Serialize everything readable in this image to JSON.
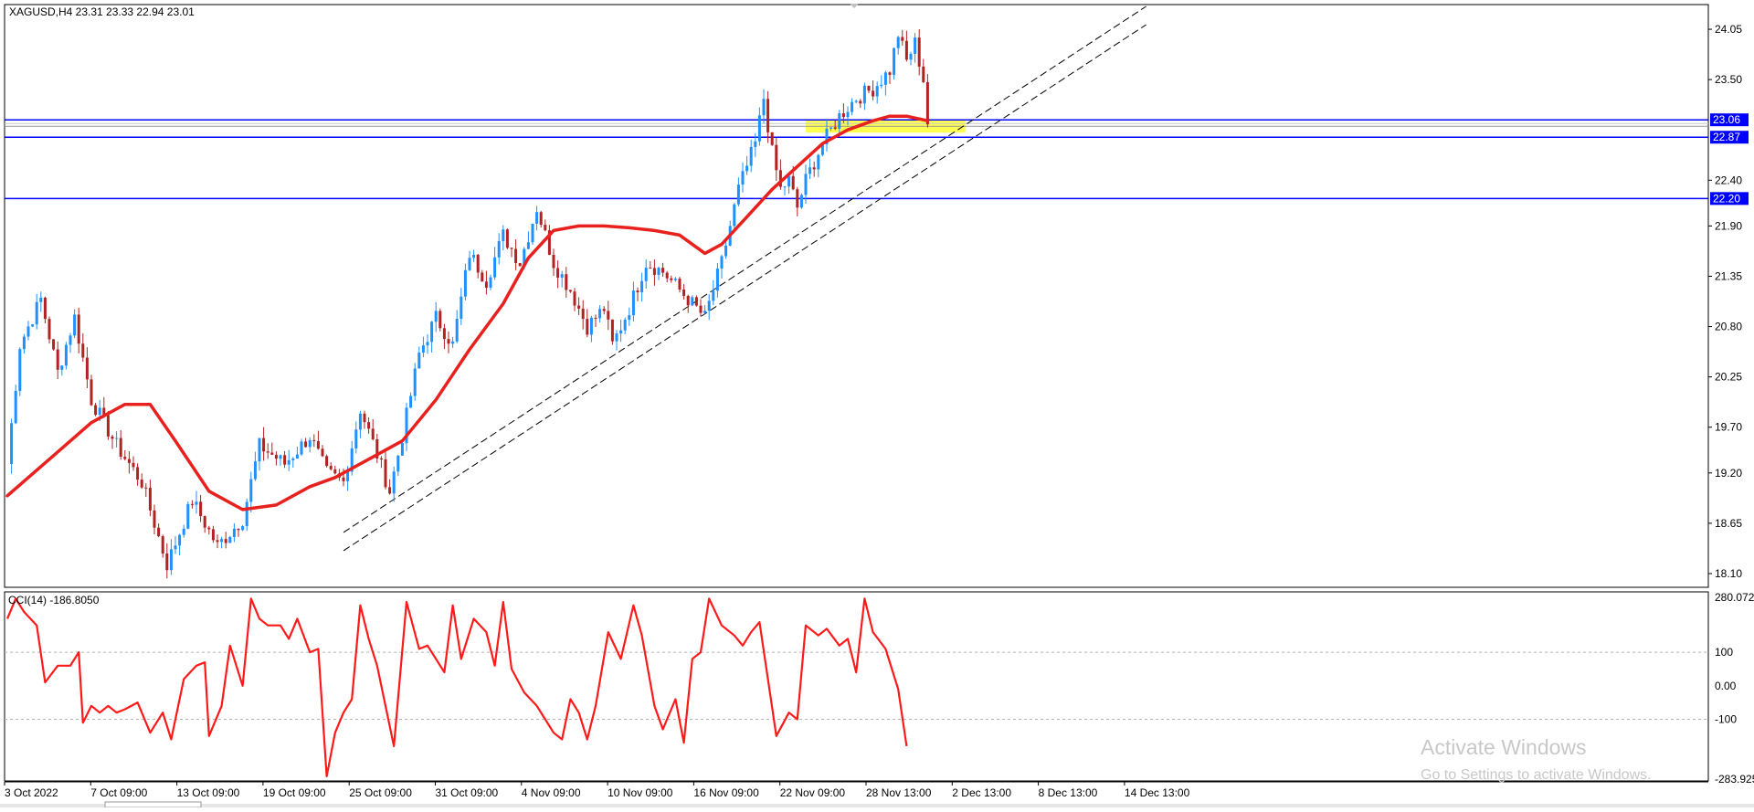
{
  "header": {
    "symbol_text": "XAGUSD,H4  23.31 23.33 22.94 23.01"
  },
  "indicator": {
    "label": "CCI(14) -186.8050"
  },
  "watermark": {
    "line1": "Activate Windows",
    "line2": "Go to Settings to activate Windows."
  },
  "colors": {
    "bull": "#1e90ff",
    "bear": "#b22222",
    "ma": "#e8201e",
    "level": "#0000ff",
    "zone": "#ffff33",
    "cci": "#ff1a1a"
  },
  "chart_data": [
    {
      "type": "candlestick",
      "symbol": "XAGUSD",
      "timeframe": "H4",
      "ylim": [
        17.95,
        24.3
      ],
      "y_ticks": [
        "24.05",
        "23.50",
        "22.40",
        "21.90",
        "21.35",
        "20.80",
        "20.25",
        "19.70",
        "19.20",
        "18.65",
        "18.10"
      ],
      "x_ticks": [
        "3 Oct 2022",
        "7 Oct 09:00",
        "13 Oct 09:00",
        "19 Oct 09:00",
        "25 Oct 09:00",
        "31 Oct 09:00",
        "4 Nov 09:00",
        "10 Nov 09:00",
        "16 Nov 09:00",
        "22 Nov 09:00",
        "28 Nov 13:00",
        "2 Dec 13:00",
        "8 Dec 13:00",
        "14 Dec 13:00"
      ],
      "close_path": [
        [
          0,
          19.3
        ],
        [
          3,
          20.6
        ],
        [
          8,
          21.1
        ],
        [
          12,
          20.3
        ],
        [
          16,
          20.9
        ],
        [
          20,
          20.0
        ],
        [
          26,
          19.5
        ],
        [
          32,
          19.1
        ],
        [
          38,
          18.2
        ],
        [
          44,
          18.9
        ],
        [
          50,
          18.4
        ],
        [
          56,
          18.7
        ],
        [
          60,
          19.5
        ],
        [
          66,
          19.3
        ],
        [
          72,
          19.6
        ],
        [
          76,
          19.2
        ],
        [
          80,
          19.1
        ],
        [
          84,
          19.9
        ],
        [
          88,
          19.4
        ],
        [
          91,
          19.0
        ],
        [
          94,
          19.6
        ],
        [
          98,
          20.5
        ],
        [
          102,
          20.9
        ],
        [
          106,
          20.6
        ],
        [
          110,
          21.6
        ],
        [
          114,
          21.3
        ],
        [
          118,
          21.8
        ],
        [
          122,
          21.5
        ],
        [
          126,
          22.1
        ],
        [
          130,
          21.5
        ],
        [
          134,
          21.2
        ],
        [
          138,
          20.8
        ],
        [
          142,
          21.0
        ],
        [
          144,
          20.6
        ],
        [
          148,
          21.0
        ],
        [
          152,
          21.5
        ],
        [
          156,
          21.4
        ],
        [
          160,
          21.2
        ],
        [
          164,
          21.0
        ],
        [
          166,
          20.9
        ],
        [
          168,
          21.2
        ],
        [
          170,
          21.5
        ],
        [
          174,
          22.3
        ],
        [
          178,
          22.8
        ],
        [
          180,
          23.3
        ],
        [
          182,
          22.7
        ],
        [
          184,
          22.3
        ],
        [
          186,
          22.4
        ],
        [
          188,
          22.1
        ],
        [
          190,
          22.4
        ],
        [
          194,
          22.8
        ],
        [
          198,
          23.1
        ],
        [
          202,
          23.3
        ],
        [
          206,
          23.4
        ],
        [
          210,
          23.6
        ],
        [
          212,
          24.0
        ],
        [
          214,
          23.7
        ],
        [
          216,
          23.9
        ],
        [
          218,
          23.5
        ],
        [
          219,
          23.01
        ]
      ],
      "moving_average": {
        "points": [
          [
            0,
            18.95
          ],
          [
            10,
            19.35
          ],
          [
            20,
            19.75
          ],
          [
            28,
            19.95
          ],
          [
            34,
            19.95
          ],
          [
            40,
            19.55
          ],
          [
            48,
            19.0
          ],
          [
            56,
            18.8
          ],
          [
            64,
            18.85
          ],
          [
            72,
            19.05
          ],
          [
            78,
            19.15
          ],
          [
            86,
            19.35
          ],
          [
            94,
            19.55
          ],
          [
            102,
            20.0
          ],
          [
            110,
            20.55
          ],
          [
            118,
            21.05
          ],
          [
            124,
            21.55
          ],
          [
            130,
            21.85
          ],
          [
            136,
            21.9
          ],
          [
            142,
            21.9
          ],
          [
            148,
            21.88
          ],
          [
            154,
            21.85
          ],
          [
            160,
            21.8
          ],
          [
            166,
            21.6
          ],
          [
            170,
            21.7
          ],
          [
            176,
            22.0
          ],
          [
            182,
            22.3
          ],
          [
            188,
            22.55
          ],
          [
            194,
            22.8
          ],
          [
            200,
            22.95
          ],
          [
            206,
            23.05
          ],
          [
            210,
            23.1
          ],
          [
            214,
            23.1
          ],
          [
            219,
            23.05
          ]
        ]
      },
      "trendlines": [
        {
          "from": [
            80,
            18.55
          ],
          "to": [
            271,
            24.3
          ]
        },
        {
          "from": [
            80,
            18.35
          ],
          "to": [
            271,
            24.1
          ]
        }
      ],
      "horizontal_levels": [
        "23.06",
        "22.87",
        "22.20"
      ],
      "zone": {
        "x_range": [
          190,
          228
        ],
        "y_range": [
          22.92,
          23.06
        ]
      }
    },
    {
      "type": "line",
      "name": "CCI(14)",
      "ylim": [
        -283.925,
        280.072
      ],
      "y_ticks": [
        "280.072",
        "100",
        "0.00",
        "-100",
        "-283.925"
      ],
      "reference_levels": [
        100,
        -100
      ],
      "values": [
        [
          0,
          200
        ],
        [
          2,
          260
        ],
        [
          4,
          220
        ],
        [
          7,
          180
        ],
        [
          9,
          10
        ],
        [
          12,
          60
        ],
        [
          15,
          60
        ],
        [
          17,
          100
        ],
        [
          18,
          -110
        ],
        [
          20,
          -60
        ],
        [
          22,
          -80
        ],
        [
          24,
          -60
        ],
        [
          26,
          -80
        ],
        [
          28,
          -70
        ],
        [
          31,
          -50
        ],
        [
          34,
          -140
        ],
        [
          37,
          -80
        ],
        [
          39,
          -160
        ],
        [
          42,
          20
        ],
        [
          45,
          60
        ],
        [
          47,
          70
        ],
        [
          48,
          -150
        ],
        [
          51,
          -60
        ],
        [
          53,
          120
        ],
        [
          56,
          0
        ],
        [
          58,
          260
        ],
        [
          60,
          200
        ],
        [
          62,
          180
        ],
        [
          65,
          180
        ],
        [
          67,
          140
        ],
        [
          69,
          200
        ],
        [
          72,
          100
        ],
        [
          74,
          110
        ],
        [
          76,
          -270
        ],
        [
          78,
          -140
        ],
        [
          80,
          -80
        ],
        [
          82,
          -40
        ],
        [
          84,
          240
        ],
        [
          86,
          140
        ],
        [
          88,
          60
        ],
        [
          92,
          -180
        ],
        [
          95,
          250
        ],
        [
          98,
          110
        ],
        [
          100,
          120
        ],
        [
          104,
          40
        ],
        [
          106,
          240
        ],
        [
          108,
          80
        ],
        [
          111,
          200
        ],
        [
          114,
          160
        ],
        [
          116,
          60
        ],
        [
          118,
          250
        ],
        [
          120,
          50
        ],
        [
          123,
          -20
        ],
        [
          126,
          -60
        ],
        [
          128,
          -100
        ],
        [
          130,
          -140
        ],
        [
          132,
          -160
        ],
        [
          134,
          -40
        ],
        [
          136,
          -80
        ],
        [
          138,
          -160
        ],
        [
          140,
          -60
        ],
        [
          143,
          160
        ],
        [
          146,
          80
        ],
        [
          149,
          240
        ],
        [
          151,
          150
        ],
        [
          154,
          -60
        ],
        [
          156,
          -130
        ],
        [
          159,
          -40
        ],
        [
          161,
          -170
        ],
        [
          163,
          80
        ],
        [
          165,
          100
        ],
        [
          167,
          260
        ],
        [
          170,
          180
        ],
        [
          173,
          150
        ],
        [
          175,
          120
        ],
        [
          177,
          160
        ],
        [
          179,
          190
        ],
        [
          183,
          -150
        ],
        [
          186,
          -80
        ],
        [
          188,
          -100
        ],
        [
          190,
          180
        ],
        [
          193,
          150
        ],
        [
          195,
          170
        ],
        [
          198,
          120
        ],
        [
          200,
          140
        ],
        [
          202,
          40
        ],
        [
          204,
          260
        ],
        [
          206,
          160
        ],
        [
          209,
          110
        ],
        [
          212,
          -10
        ],
        [
          214,
          -180
        ]
      ]
    }
  ]
}
